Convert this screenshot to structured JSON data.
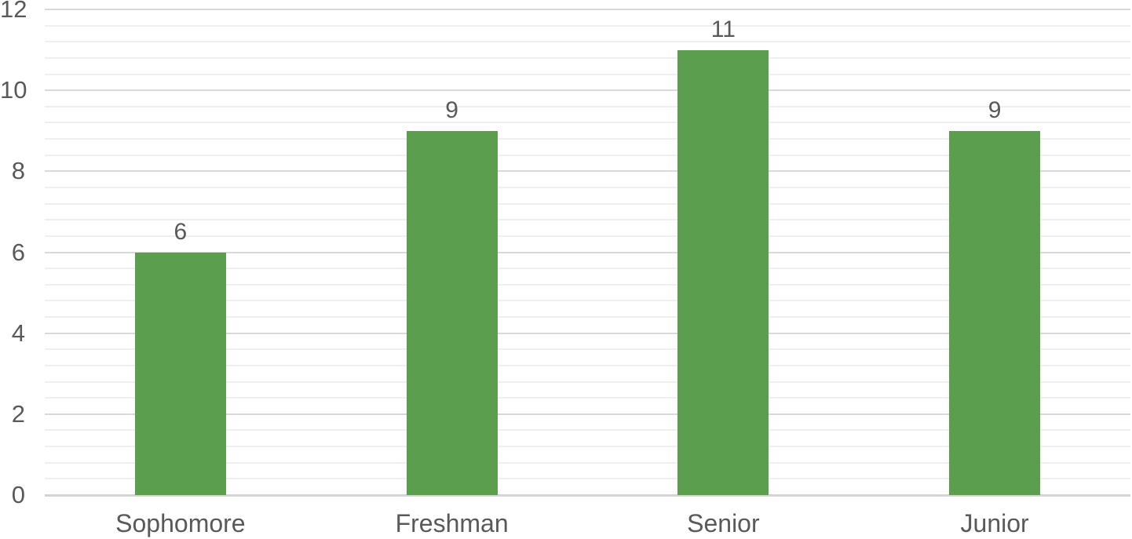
{
  "chart_data": {
    "type": "bar",
    "title": "",
    "xlabel": "",
    "ylabel": "",
    "categories": [
      "Sophomore",
      "Freshman",
      "Senior",
      "Junior"
    ],
    "values": [
      6,
      9,
      11,
      9
    ],
    "data_labels": [
      "6",
      "9",
      "11",
      "9"
    ],
    "ylim": [
      0,
      12
    ],
    "y_major_ticks": [
      "0",
      "2",
      "4",
      "6",
      "8",
      "10",
      "12"
    ],
    "y_major_unit": 2,
    "y_minor_unit": 0.4,
    "grid": "horizontal major and minor gridlines on",
    "legend": "none",
    "colors": {
      "bar_fill": "#5a9e4e",
      "axis_text": "#595959",
      "data_label_text": "#595959",
      "major_gridline": "#d9d9d9",
      "minor_gridline": "#efefef",
      "axis_line": "#d4d4d8",
      "background": "#ffffff"
    }
  }
}
